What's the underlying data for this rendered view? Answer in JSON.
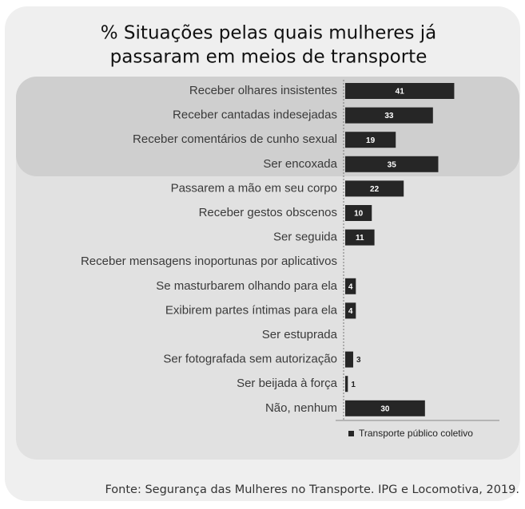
{
  "chart_data": {
    "type": "bar",
    "orientation": "horizontal",
    "title": [
      "% Situações pelas quais mulheres já",
      "passaram em meios de transporte"
    ],
    "categories": [
      "Receber olhares insistentes",
      "Receber cantadas indesejadas",
      "Receber comentários de cunho sexual",
      "Ser encoxada",
      "Passarem a mão em seu corpo",
      "Receber gestos obscenos",
      "Ser seguida",
      "Receber mensagens inoportunas por aplicativos",
      "Se masturbarem olhando para ela",
      "Exibirem partes íntimas para ela",
      "Ser estuprada",
      "Ser fotografada sem autorização",
      "Ser beijada à força",
      "Não, nenhum"
    ],
    "series": [
      {
        "name": "Transporte público coletivo",
        "color": "#262626",
        "values": [
          41,
          33,
          19,
          35,
          22,
          10,
          11,
          null,
          4,
          4,
          null,
          3,
          1,
          30
        ]
      }
    ],
    "xlim": [
      0,
      58
    ],
    "legend": "bottom-right",
    "source": "Fonte: Segurança das Mulheres no Transporte. IPG e Locomotiva, 2019."
  }
}
